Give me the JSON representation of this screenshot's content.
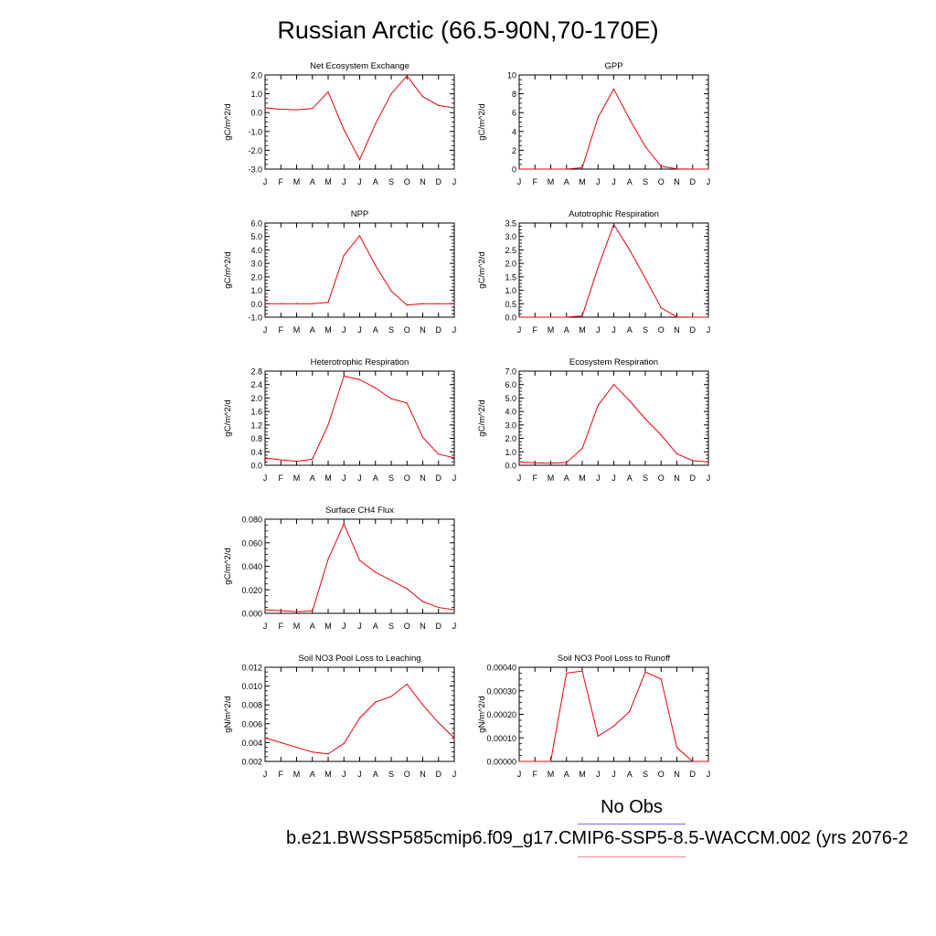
{
  "title": "Russian Arctic (66.5-90N,70-170E)",
  "legend": {
    "heading": "No Obs",
    "case": "b.e21.BWSSP585cmip6.f09_g17.CMIP6-SSP5-8.5-WACCM.002 (yrs 2076-2"
  },
  "colors": {
    "series": "#e8000b",
    "axis": "#000000",
    "obs_line": "#6f6fe8",
    "case_line": "#f08a8a"
  },
  "chart_data": [
    {
      "type": "line",
      "title": "Net Ecosystem Exchange",
      "ylabel": "gC/m^2/d",
      "ylim": [
        -3.0,
        2.0
      ],
      "yticks": [
        "-3.0",
        "-2.0",
        "-1.0",
        "0.0",
        "1.0",
        "2.0"
      ],
      "x": [
        "J",
        "F",
        "M",
        "A",
        "M",
        "J",
        "J",
        "A",
        "S",
        "O",
        "N",
        "D",
        "J"
      ],
      "series": [
        {
          "values": [
            0.25,
            0.18,
            0.15,
            0.22,
            1.1,
            -0.9,
            -2.5,
            -0.6,
            1.0,
            1.95,
            0.85,
            0.38,
            0.25
          ]
        }
      ]
    },
    {
      "type": "line",
      "title": "GPP",
      "ylabel": "gC/m^2/d",
      "ylim": [
        0,
        10
      ],
      "yticks": [
        "0",
        "2",
        "4",
        "6",
        "8",
        "10"
      ],
      "x": [
        "J",
        "F",
        "M",
        "A",
        "M",
        "J",
        "J",
        "A",
        "S",
        "O",
        "N",
        "D",
        "J"
      ],
      "series": [
        {
          "values": [
            0,
            0,
            0,
            0,
            0.15,
            5.5,
            8.5,
            5.3,
            2.4,
            0.3,
            0.02,
            0,
            0
          ]
        }
      ]
    },
    {
      "type": "line",
      "title": "NPP",
      "ylabel": "gC/m^2/d",
      "ylim": [
        -1.0,
        6.0
      ],
      "yticks": [
        "-1.0",
        "0.0",
        "1.0",
        "2.0",
        "3.0",
        "4.0",
        "5.0",
        "6.0"
      ],
      "x": [
        "J",
        "F",
        "M",
        "A",
        "M",
        "J",
        "J",
        "A",
        "S",
        "O",
        "N",
        "D",
        "J"
      ],
      "series": [
        {
          "values": [
            0,
            0,
            0,
            0,
            0.1,
            3.6,
            5.05,
            2.85,
            0.95,
            -0.1,
            0,
            0,
            0
          ]
        }
      ]
    },
    {
      "type": "line",
      "title": "Autotrophic Respiration",
      "ylabel": "gC/m^2/d",
      "ylim": [
        0,
        3.5
      ],
      "yticks": [
        "0.0",
        "0.5",
        "1.0",
        "1.5",
        "2.0",
        "2.5",
        "3.0",
        "3.5"
      ],
      "x": [
        "J",
        "F",
        "M",
        "A",
        "M",
        "J",
        "J",
        "A",
        "S",
        "O",
        "N",
        "D",
        "J"
      ],
      "series": [
        {
          "values": [
            0,
            0,
            0,
            0,
            0.05,
            1.85,
            3.45,
            2.5,
            1.45,
            0.35,
            0.01,
            0,
            0
          ]
        }
      ]
    },
    {
      "type": "line",
      "title": "Heterotrophic Respiration",
      "ylabel": "gC/m^2/d",
      "ylim": [
        0,
        2.8
      ],
      "yticks": [
        "0.0",
        "0.4",
        "0.8",
        "1.2",
        "1.6",
        "2.0",
        "2.4",
        "2.8"
      ],
      "x": [
        "J",
        "F",
        "M",
        "A",
        "M",
        "J",
        "J",
        "A",
        "S",
        "O",
        "N",
        "D",
        "J"
      ],
      "series": [
        {
          "values": [
            0.22,
            0.16,
            0.12,
            0.18,
            1.2,
            2.65,
            2.55,
            2.3,
            1.98,
            1.85,
            0.83,
            0.33,
            0.22
          ]
        }
      ]
    },
    {
      "type": "line",
      "title": "Ecosystem Respiration",
      "ylabel": "gC/m^2/d",
      "ylim": [
        0,
        7.0
      ],
      "yticks": [
        "0.0",
        "1.0",
        "2.0",
        "3.0",
        "4.0",
        "5.0",
        "6.0",
        "7.0"
      ],
      "x": [
        "J",
        "F",
        "M",
        "A",
        "M",
        "J",
        "J",
        "A",
        "S",
        "O",
        "N",
        "D",
        "J"
      ],
      "series": [
        {
          "values": [
            0.25,
            0.18,
            0.15,
            0.2,
            1.25,
            4.45,
            6.0,
            4.8,
            3.45,
            2.25,
            0.85,
            0.35,
            0.25
          ]
        }
      ]
    },
    {
      "type": "line",
      "title": "Surface CH4 Flux",
      "ylabel": "gC/m^2/d",
      "ylim": [
        0,
        0.08
      ],
      "yticks": [
        "0.000",
        "0.020",
        "0.040",
        "0.060",
        "0.080"
      ],
      "x": [
        "J",
        "F",
        "M",
        "A",
        "M",
        "J",
        "J",
        "A",
        "S",
        "O",
        "N",
        "D",
        "J"
      ],
      "series": [
        {
          "values": [
            0.003,
            0.0022,
            0.0015,
            0.002,
            0.046,
            0.076,
            0.045,
            0.035,
            0.028,
            0.021,
            0.01,
            0.005,
            0.003
          ]
        }
      ]
    },
    null,
    {
      "type": "line",
      "title": "Soil NO3 Pool Loss to Leaching",
      "ylabel": "gN/m^2/d",
      "ylim": [
        0.002,
        0.012
      ],
      "yticks": [
        "0.002",
        "0.004",
        "0.006",
        "0.008",
        "0.010",
        "0.012"
      ],
      "x": [
        "J",
        "F",
        "M",
        "A",
        "M",
        "J",
        "J",
        "A",
        "S",
        "O",
        "N",
        "D",
        "J"
      ],
      "series": [
        {
          "values": [
            0.0045,
            0.004,
            0.0035,
            0.003,
            0.0028,
            0.0039,
            0.0066,
            0.0083,
            0.0089,
            0.0102,
            0.008,
            0.0061,
            0.0045
          ]
        }
      ]
    },
    {
      "type": "line",
      "title": "Soil NO3 Pool Loss to Runoff",
      "ylabel": "gN/m^2/d",
      "ylim": [
        0,
        0.0004
      ],
      "yticks": [
        "0.00000",
        "0.00010",
        "0.00020",
        "0.00030",
        "0.00040"
      ],
      "x": [
        "J",
        "F",
        "M",
        "A",
        "M",
        "J",
        "J",
        "A",
        "S",
        "O",
        "N",
        "D",
        "J"
      ],
      "series": [
        {
          "values": [
            0,
            0,
            0,
            0.000375,
            0.000384,
            0.000107,
            0.00015,
            0.000212,
            0.00038,
            0.00035,
            5.9e-05,
            0,
            0
          ]
        }
      ]
    }
  ]
}
